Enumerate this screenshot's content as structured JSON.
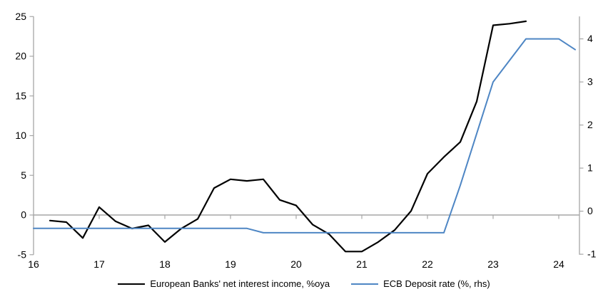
{
  "chart_data": {
    "type": "line",
    "title": "",
    "background": "#ffffff",
    "axis_color": "#a6a6a6",
    "text_color": "#000000",
    "gridlines": "zero-line-only",
    "legend_position": "bottom-center",
    "x_axis": {
      "ticks": [
        16,
        17,
        18,
        19,
        20,
        21,
        22,
        23,
        24
      ],
      "range": [
        16,
        24.31
      ]
    },
    "left_axis": {
      "ticks": [
        25,
        20,
        15,
        10,
        5,
        0,
        -5
      ],
      "range": [
        -5,
        25
      ]
    },
    "right_axis": {
      "ticks": [
        4,
        3,
        2,
        1,
        0,
        -1
      ],
      "range": [
        -1,
        4.52
      ]
    },
    "series": [
      {
        "name": "European Banks' net interest income, %oya",
        "axis": "left",
        "color": "#000000",
        "stroke_width": 2.2,
        "points": [
          [
            16.25,
            -0.7
          ],
          [
            16.5,
            -0.9
          ],
          [
            16.75,
            -2.9
          ],
          [
            17.0,
            1.0
          ],
          [
            17.25,
            -0.8
          ],
          [
            17.5,
            -1.7
          ],
          [
            17.75,
            -1.3
          ],
          [
            18.0,
            -3.4
          ],
          [
            18.25,
            -1.7
          ],
          [
            18.5,
            -0.5
          ],
          [
            18.75,
            3.4
          ],
          [
            19.0,
            4.5
          ],
          [
            19.25,
            4.3
          ],
          [
            19.5,
            4.5
          ],
          [
            19.75,
            1.9
          ],
          [
            20.0,
            1.2
          ],
          [
            20.25,
            -1.2
          ],
          [
            20.5,
            -2.4
          ],
          [
            20.75,
            -4.6
          ],
          [
            21.0,
            -4.6
          ],
          [
            21.25,
            -3.4
          ],
          [
            21.5,
            -1.9
          ],
          [
            21.75,
            0.5
          ],
          [
            22.0,
            5.2
          ],
          [
            22.25,
            7.3
          ],
          [
            22.5,
            9.2
          ],
          [
            22.75,
            14.3
          ],
          [
            23.0,
            23.9
          ],
          [
            23.25,
            24.1
          ],
          [
            23.5,
            24.4
          ]
        ]
      },
      {
        "name": "ECB Deposit rate (%, rhs)",
        "axis": "right",
        "color": "#4e86c4",
        "stroke_width": 2,
        "points": [
          [
            16.0,
            -0.4
          ],
          [
            16.25,
            -0.4
          ],
          [
            16.5,
            -0.4
          ],
          [
            16.75,
            -0.4
          ],
          [
            17.0,
            -0.4
          ],
          [
            17.25,
            -0.4
          ],
          [
            17.5,
            -0.4
          ],
          [
            17.75,
            -0.4
          ],
          [
            18.0,
            -0.4
          ],
          [
            18.25,
            -0.4
          ],
          [
            18.5,
            -0.4
          ],
          [
            18.75,
            -0.4
          ],
          [
            19.0,
            -0.4
          ],
          [
            19.25,
            -0.4
          ],
          [
            19.5,
            -0.5
          ],
          [
            19.75,
            -0.5
          ],
          [
            20.0,
            -0.5
          ],
          [
            20.25,
            -0.5
          ],
          [
            20.5,
            -0.5
          ],
          [
            20.75,
            -0.5
          ],
          [
            21.0,
            -0.5
          ],
          [
            21.25,
            -0.5
          ],
          [
            21.5,
            -0.5
          ],
          [
            21.75,
            -0.5
          ],
          [
            22.0,
            -0.5
          ],
          [
            22.25,
            -0.5
          ],
          [
            22.5,
            0.6
          ],
          [
            22.75,
            1.8
          ],
          [
            23.0,
            3.0
          ],
          [
            23.25,
            3.5
          ],
          [
            23.5,
            4.0
          ],
          [
            23.75,
            4.0
          ],
          [
            24.0,
            4.0
          ],
          [
            24.25,
            3.75
          ]
        ]
      }
    ]
  },
  "legend": {
    "items": [
      {
        "label": "European Banks' net interest income, %oya"
      },
      {
        "label": "ECB Deposit rate (%, rhs)"
      }
    ]
  }
}
